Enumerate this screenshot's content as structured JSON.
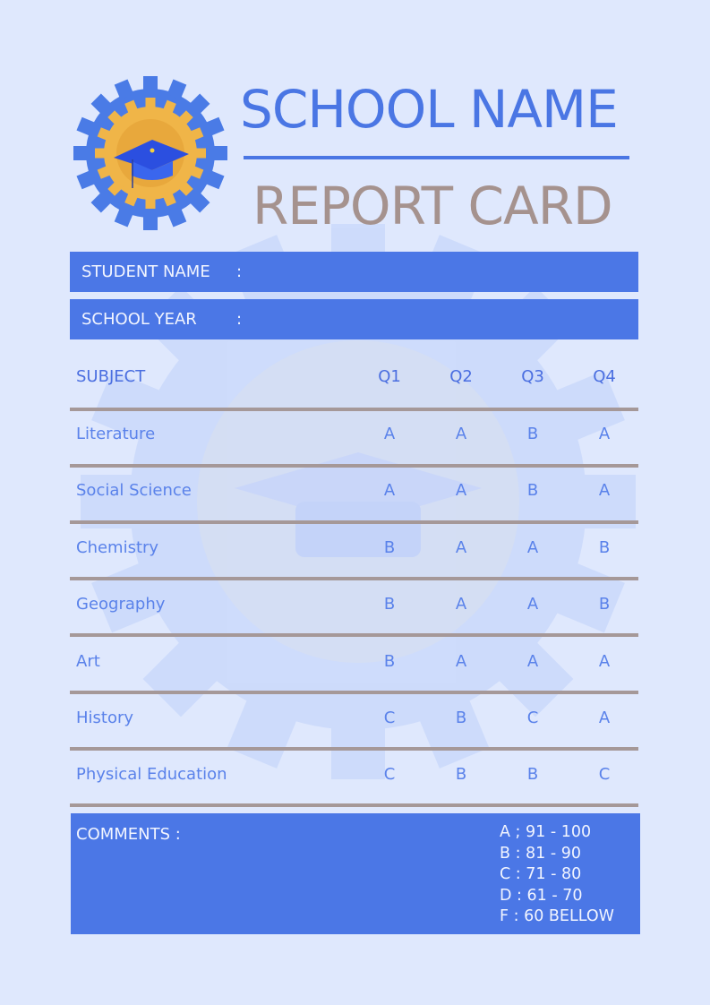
{
  "header": {
    "school_name": "SCHOOL NAME",
    "title": "REPORT CARD"
  },
  "info": {
    "student_name_label": "STUDENT NAME",
    "school_year_label": "SCHOOL YEAR",
    "separator": ":"
  },
  "table": {
    "headers": [
      "SUBJECT",
      "Q1",
      "Q2",
      "Q3",
      "Q4"
    ],
    "rows": [
      [
        "Literature",
        "A",
        "A",
        "B",
        "A"
      ],
      [
        "Social Science",
        "A",
        "A",
        "B",
        "A"
      ],
      [
        "Chemistry",
        "B",
        "A",
        "A",
        "B"
      ],
      [
        "Geography",
        "B",
        "A",
        "A",
        "B"
      ],
      [
        "Art",
        "B",
        "A",
        "A",
        "A"
      ],
      [
        "History",
        "C",
        "B",
        "C",
        "A"
      ],
      [
        "Physical Education",
        "C",
        "B",
        "B",
        "C"
      ]
    ]
  },
  "comments": {
    "label": "COMMENTS :",
    "scale": [
      "A ; 91 - 100",
      "B : 81 - 90",
      "C : 71 - 80",
      "D : 61 - 70",
      "F : 60 BELLOW"
    ]
  },
  "colors": {
    "accent": "#4b77e6",
    "title_gray": "#a5928e",
    "background": "#dfe8fd",
    "gear_orange": "#f0b548"
  },
  "icons": {
    "logo": "gear-graduation-cap-icon",
    "watermark": "gear-graduation-cap-icon"
  }
}
